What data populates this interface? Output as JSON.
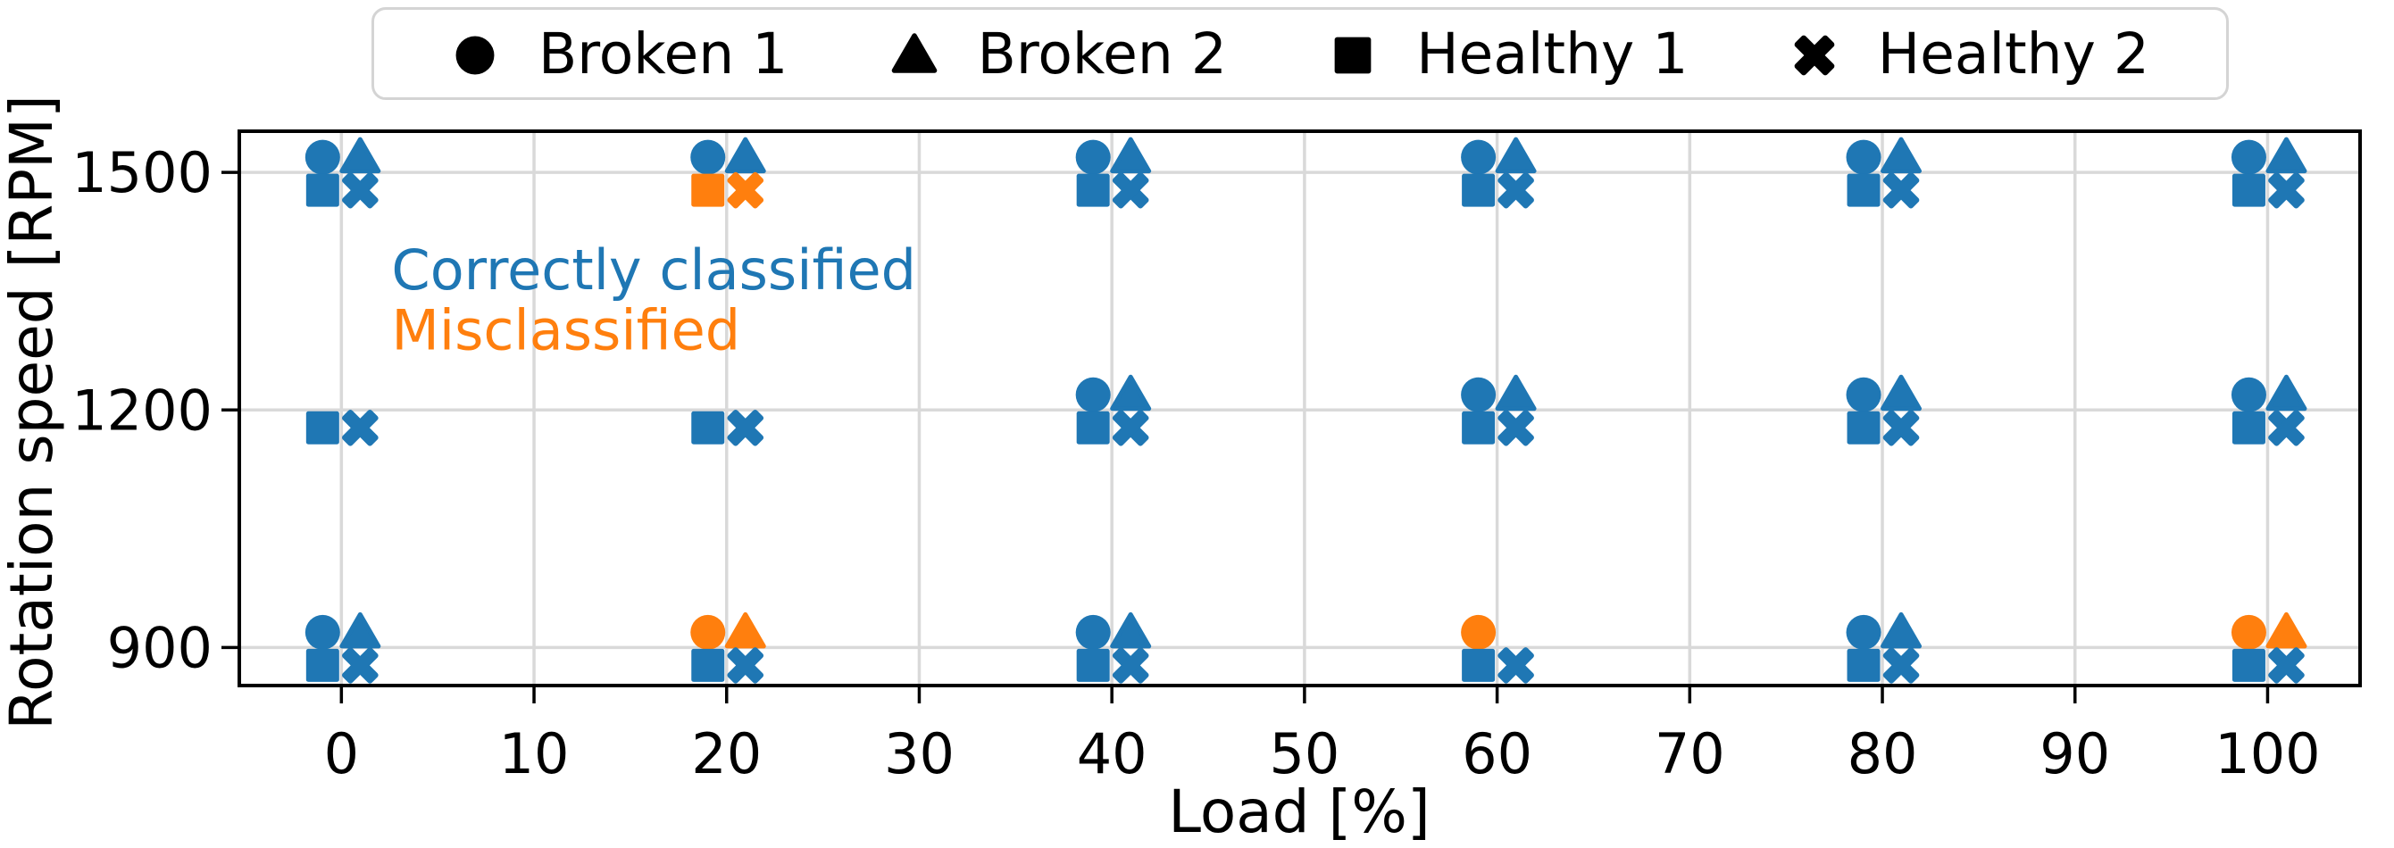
{
  "chart_data": {
    "type": "scatter",
    "title": "",
    "xlabel": "Load [%]",
    "ylabel": "Rotation speed [RPM]",
    "xlim": [
      -5.3,
      104.8
    ],
    "ylim": [
      852,
      1552
    ],
    "xticks": [
      0,
      10,
      20,
      30,
      40,
      50,
      60,
      70,
      80,
      90,
      100
    ],
    "yticks": [
      900,
      1200,
      1500
    ],
    "grid": true,
    "grid_color": "#d9d9d9",
    "spine_color": "#000000",
    "status_colors": {
      "correct": "#1f77b4",
      "misclassified": "#ff7f0e"
    },
    "legend": {
      "position": "top-center",
      "entries": [
        {
          "label": "Broken 1",
          "marker": "circle"
        },
        {
          "label": "Broken 2",
          "marker": "triangle"
        },
        {
          "label": "Healthy 1",
          "marker": "square"
        },
        {
          "label": "Healthy 2",
          "marker": "x"
        }
      ]
    },
    "series_markers": {
      "Broken 1": "circle",
      "Broken 2": "triangle",
      "Healthy 1": "square",
      "Healthy 2": "x"
    },
    "annotations": [
      {
        "text": "Correctly classified",
        "status": "correct",
        "x": 2.6,
        "y": 1376
      },
      {
        "text": "Misclassified",
        "status": "misclassified",
        "x": 2.6,
        "y": 1300
      }
    ],
    "points": [
      {
        "load": 0,
        "rpm": 1500,
        "series": "Broken 1",
        "status": "correct"
      },
      {
        "load": 0,
        "rpm": 1500,
        "series": "Broken 2",
        "status": "correct"
      },
      {
        "load": 0,
        "rpm": 1500,
        "series": "Healthy 1",
        "status": "correct"
      },
      {
        "load": 0,
        "rpm": 1500,
        "series": "Healthy 2",
        "status": "correct"
      },
      {
        "load": 20,
        "rpm": 1500,
        "series": "Broken 1",
        "status": "correct"
      },
      {
        "load": 20,
        "rpm": 1500,
        "series": "Broken 2",
        "status": "correct"
      },
      {
        "load": 20,
        "rpm": 1500,
        "series": "Healthy 1",
        "status": "misclassified"
      },
      {
        "load": 20,
        "rpm": 1500,
        "series": "Healthy 2",
        "status": "misclassified"
      },
      {
        "load": 40,
        "rpm": 1500,
        "series": "Broken 1",
        "status": "correct"
      },
      {
        "load": 40,
        "rpm": 1500,
        "series": "Broken 2",
        "status": "correct"
      },
      {
        "load": 40,
        "rpm": 1500,
        "series": "Healthy 1",
        "status": "correct"
      },
      {
        "load": 40,
        "rpm": 1500,
        "series": "Healthy 2",
        "status": "correct"
      },
      {
        "load": 60,
        "rpm": 1500,
        "series": "Broken 1",
        "status": "correct"
      },
      {
        "load": 60,
        "rpm": 1500,
        "series": "Broken 2",
        "status": "correct"
      },
      {
        "load": 60,
        "rpm": 1500,
        "series": "Healthy 1",
        "status": "correct"
      },
      {
        "load": 60,
        "rpm": 1500,
        "series": "Healthy 2",
        "status": "correct"
      },
      {
        "load": 80,
        "rpm": 1500,
        "series": "Broken 1",
        "status": "correct"
      },
      {
        "load": 80,
        "rpm": 1500,
        "series": "Broken 2",
        "status": "correct"
      },
      {
        "load": 80,
        "rpm": 1500,
        "series": "Healthy 1",
        "status": "correct"
      },
      {
        "load": 80,
        "rpm": 1500,
        "series": "Healthy 2",
        "status": "correct"
      },
      {
        "load": 100,
        "rpm": 1500,
        "series": "Broken 1",
        "status": "correct"
      },
      {
        "load": 100,
        "rpm": 1500,
        "series": "Broken 2",
        "status": "correct"
      },
      {
        "load": 100,
        "rpm": 1500,
        "series": "Healthy 1",
        "status": "correct"
      },
      {
        "load": 100,
        "rpm": 1500,
        "series": "Healthy 2",
        "status": "correct"
      },
      {
        "load": 0,
        "rpm": 1200,
        "series": "Healthy 1",
        "status": "correct"
      },
      {
        "load": 0,
        "rpm": 1200,
        "series": "Healthy 2",
        "status": "correct"
      },
      {
        "load": 20,
        "rpm": 1200,
        "series": "Healthy 1",
        "status": "correct"
      },
      {
        "load": 20,
        "rpm": 1200,
        "series": "Healthy 2",
        "status": "correct"
      },
      {
        "load": 40,
        "rpm": 1200,
        "series": "Broken 1",
        "status": "correct"
      },
      {
        "load": 40,
        "rpm": 1200,
        "series": "Broken 2",
        "status": "correct"
      },
      {
        "load": 40,
        "rpm": 1200,
        "series": "Healthy 1",
        "status": "correct"
      },
      {
        "load": 40,
        "rpm": 1200,
        "series": "Healthy 2",
        "status": "correct"
      },
      {
        "load": 60,
        "rpm": 1200,
        "series": "Broken 1",
        "status": "correct"
      },
      {
        "load": 60,
        "rpm": 1200,
        "series": "Broken 2",
        "status": "correct"
      },
      {
        "load": 60,
        "rpm": 1200,
        "series": "Healthy 1",
        "status": "correct"
      },
      {
        "load": 60,
        "rpm": 1200,
        "series": "Healthy 2",
        "status": "correct"
      },
      {
        "load": 80,
        "rpm": 1200,
        "series": "Broken 1",
        "status": "correct"
      },
      {
        "load": 80,
        "rpm": 1200,
        "series": "Broken 2",
        "status": "correct"
      },
      {
        "load": 80,
        "rpm": 1200,
        "series": "Healthy 1",
        "status": "correct"
      },
      {
        "load": 80,
        "rpm": 1200,
        "series": "Healthy 2",
        "status": "correct"
      },
      {
        "load": 100,
        "rpm": 1200,
        "series": "Broken 1",
        "status": "correct"
      },
      {
        "load": 100,
        "rpm": 1200,
        "series": "Broken 2",
        "status": "correct"
      },
      {
        "load": 100,
        "rpm": 1200,
        "series": "Healthy 1",
        "status": "correct"
      },
      {
        "load": 100,
        "rpm": 1200,
        "series": "Healthy 2",
        "status": "correct"
      },
      {
        "load": 0,
        "rpm": 900,
        "series": "Broken 1",
        "status": "correct"
      },
      {
        "load": 0,
        "rpm": 900,
        "series": "Broken 2",
        "status": "correct"
      },
      {
        "load": 0,
        "rpm": 900,
        "series": "Healthy 1",
        "status": "correct"
      },
      {
        "load": 0,
        "rpm": 900,
        "series": "Healthy 2",
        "status": "correct"
      },
      {
        "load": 20,
        "rpm": 900,
        "series": "Broken 1",
        "status": "misclassified"
      },
      {
        "load": 20,
        "rpm": 900,
        "series": "Broken 2",
        "status": "misclassified"
      },
      {
        "load": 20,
        "rpm": 900,
        "series": "Healthy 1",
        "status": "correct"
      },
      {
        "load": 20,
        "rpm": 900,
        "series": "Healthy 2",
        "status": "correct"
      },
      {
        "load": 40,
        "rpm": 900,
        "series": "Broken 1",
        "status": "correct"
      },
      {
        "load": 40,
        "rpm": 900,
        "series": "Broken 2",
        "status": "correct"
      },
      {
        "load": 40,
        "rpm": 900,
        "series": "Healthy 1",
        "status": "correct"
      },
      {
        "load": 40,
        "rpm": 900,
        "series": "Healthy 2",
        "status": "correct"
      },
      {
        "load": 60,
        "rpm": 900,
        "series": "Broken 1",
        "status": "misclassified"
      },
      {
        "load": 60,
        "rpm": 900,
        "series": "Healthy 1",
        "status": "correct"
      },
      {
        "load": 60,
        "rpm": 900,
        "series": "Healthy 2",
        "status": "correct"
      },
      {
        "load": 80,
        "rpm": 900,
        "series": "Broken 1",
        "status": "correct"
      },
      {
        "load": 80,
        "rpm": 900,
        "series": "Broken 2",
        "status": "correct"
      },
      {
        "load": 80,
        "rpm": 900,
        "series": "Healthy 1",
        "status": "correct"
      },
      {
        "load": 80,
        "rpm": 900,
        "series": "Healthy 2",
        "status": "correct"
      },
      {
        "load": 100,
        "rpm": 900,
        "series": "Broken 1",
        "status": "misclassified"
      },
      {
        "load": 100,
        "rpm": 900,
        "series": "Broken 2",
        "status": "misclassified"
      },
      {
        "load": 100,
        "rpm": 900,
        "series": "Healthy 1",
        "status": "correct"
      },
      {
        "load": 100,
        "rpm": 900,
        "series": "Healthy 2",
        "status": "correct"
      }
    ]
  }
}
